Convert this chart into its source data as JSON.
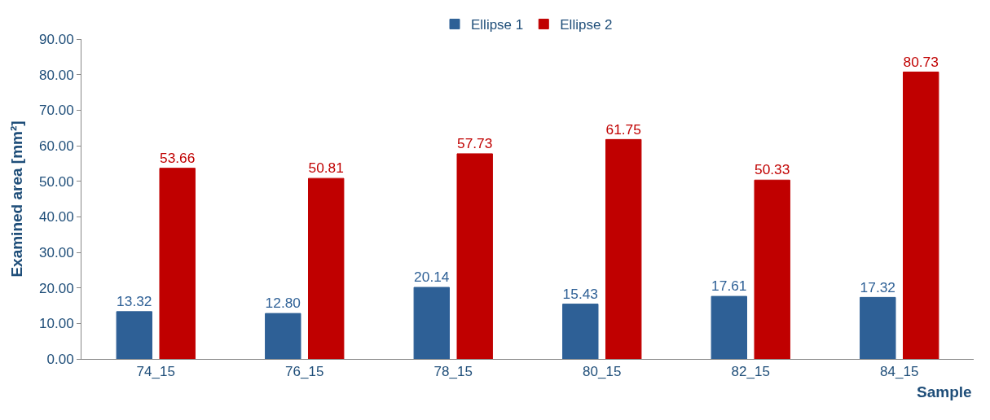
{
  "chart_data": {
    "type": "bar",
    "xlabel": "Sample",
    "ylabel": "Examined area [mm²]",
    "categories": [
      "74_15",
      "76_15",
      "78_15",
      "80_15",
      "82_15",
      "84_15"
    ],
    "series": [
      {
        "name": "Ellipse 1",
        "color": "#2e6096",
        "values": [
          13.32,
          12.8,
          20.14,
          15.43,
          17.61,
          17.32
        ],
        "value_labels": [
          "13.32",
          "12.80",
          "20.14",
          "15.43",
          "17.61",
          "17.32"
        ]
      },
      {
        "name": "Ellipse 2",
        "color": "#c00000",
        "values": [
          53.66,
          50.81,
          57.73,
          61.75,
          50.33,
          80.73
        ],
        "value_labels": [
          "53.66",
          "50.81",
          "57.73",
          "61.75",
          "50.33",
          "80.73"
        ]
      }
    ],
    "ylim": [
      0,
      90
    ],
    "yticks": [
      {
        "value": 0,
        "label": "0.00"
      },
      {
        "value": 10,
        "label": "10.00"
      },
      {
        "value": 20,
        "label": "20.00"
      },
      {
        "value": 30,
        "label": "30.00"
      },
      {
        "value": 40,
        "label": "40.00"
      },
      {
        "value": 50,
        "label": "50.00"
      },
      {
        "value": 60,
        "label": "60.00"
      },
      {
        "value": 70,
        "label": "70.00"
      },
      {
        "value": 80,
        "label": "80.00"
      },
      {
        "value": 90,
        "label": "90.00"
      }
    ],
    "grid": false,
    "legend": "top"
  }
}
